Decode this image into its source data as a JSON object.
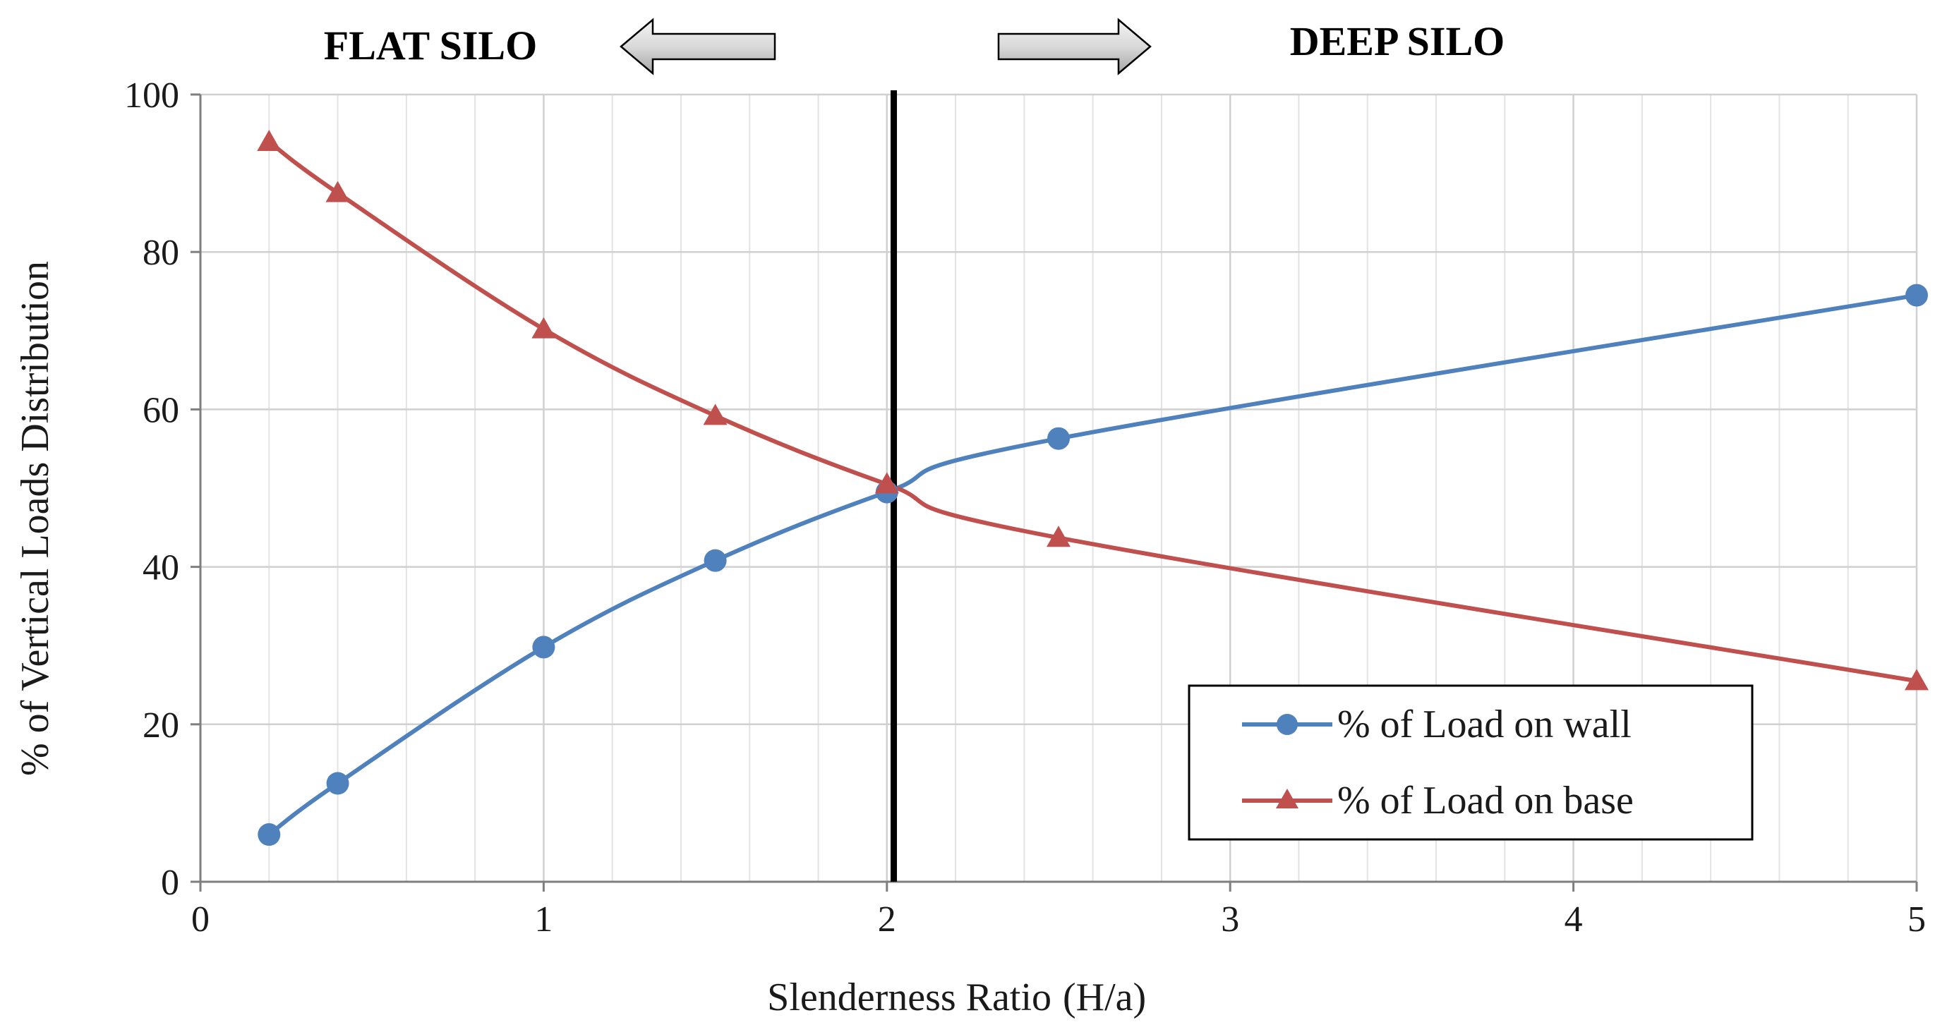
{
  "chart_data": {
    "type": "line",
    "title": "",
    "xlabel": "Slenderness Ratio",
    "xlabel_unit": "(H/a)",
    "ylabel": "%  of  Vertical  Loads Distribution",
    "xlim": [
      0,
      5
    ],
    "ylim": [
      0,
      100
    ],
    "x_ticks": [
      "0",
      "1",
      "2",
      "3",
      "4",
      "5"
    ],
    "y_ticks": [
      "0",
      "20",
      "40",
      "60",
      "80",
      "100"
    ],
    "grid": true,
    "legend_position": "bottom-right",
    "divider_x": 2.02,
    "region_labels": {
      "left": "FLAT SILO",
      "right": "DEEP SILO"
    },
    "series": [
      {
        "name": "% of Load on wall",
        "marker": "circle",
        "color": "#4F81BD",
        "x": [
          0.2,
          0.4,
          1.0,
          1.5,
          2.0,
          2.5,
          5.0
        ],
        "y": [
          6.0,
          12.5,
          29.8,
          40.8,
          49.5,
          56.3,
          74.5
        ]
      },
      {
        "name": "% of Load on base",
        "marker": "triangle",
        "color": "#C0504D",
        "x": [
          0.2,
          0.4,
          1.0,
          1.5,
          2.0,
          2.5,
          5.0
        ],
        "y": [
          94.0,
          87.5,
          70.2,
          59.2,
          50.5,
          43.7,
          25.5
        ]
      }
    ]
  },
  "colors": {
    "xlabel_unit": "#FF0000",
    "arrow_fill": "#D9D9D9",
    "grid": "#D9D9D9",
    "axis": "#808080"
  }
}
